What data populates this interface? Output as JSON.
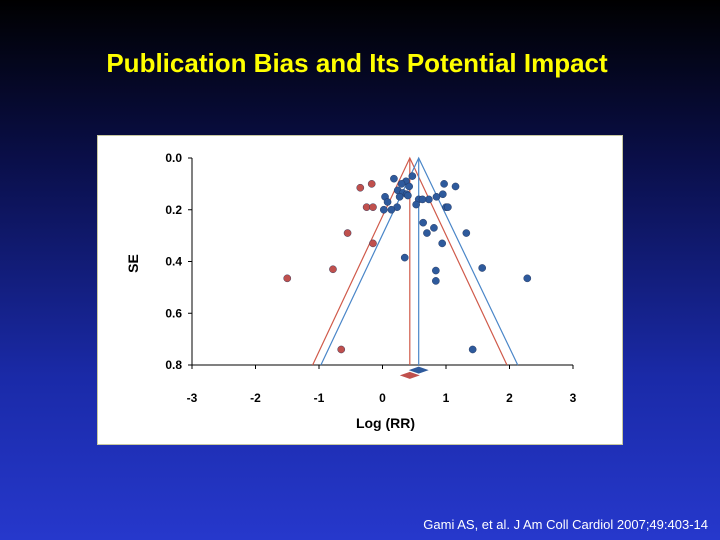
{
  "title": "Publication Bias and Its Potential Impact",
  "citation": "Gami AS, et al. J Am Coll Cardiol 2007;49:403-14",
  "colors": {
    "red": "#c0504d",
    "blue": "#2e5a9c",
    "red_line": "#d05a4a",
    "blue_line": "#4a86c8"
  },
  "chart_data": {
    "type": "scatter",
    "title": "",
    "xlabel": "Log (RR)",
    "ylabel": "SE",
    "xlim": [
      -3,
      3
    ],
    "ylim": [
      0.8,
      0.0
    ],
    "x_ticks": [
      -3,
      -2,
      -1,
      0,
      1,
      2,
      3
    ],
    "y_ticks": [
      0.0,
      0.2,
      0.4,
      0.6,
      0.8
    ],
    "x_tick_labels": [
      "-3",
      "-2",
      "-1",
      "0",
      "1",
      "2",
      "3"
    ],
    "y_tick_labels": [
      "0.0",
      "0.2",
      "0.4",
      "0.6",
      "0.8"
    ],
    "grid": false,
    "funnels": [
      {
        "color": "red",
        "center": 0.43,
        "base_left": -1.1,
        "base_right": 1.96,
        "base_se": 0.8
      },
      {
        "color": "blue",
        "center": 0.57,
        "base_left": -0.97,
        "base_right": 2.13,
        "base_se": 0.8
      }
    ],
    "pooled_estimates": [
      {
        "color": "blue",
        "x": 0.57,
        "se": 0.82
      },
      {
        "color": "red",
        "x": 0.43,
        "se": 0.84
      }
    ],
    "series": [
      {
        "color": "red",
        "points": [
          {
            "x": -0.35,
            "se": 0.115
          },
          {
            "x": -0.17,
            "se": 0.1
          },
          {
            "x": -0.25,
            "se": 0.19
          },
          {
            "x": -0.15,
            "se": 0.19
          },
          {
            "x": -0.55,
            "se": 0.29
          },
          {
            "x": -0.15,
            "se": 0.33
          },
          {
            "x": -0.78,
            "se": 0.43
          },
          {
            "x": -1.5,
            "se": 0.465
          },
          {
            "x": -0.65,
            "se": 0.74
          }
        ]
      },
      {
        "color": "blue",
        "points": [
          {
            "x": 0.47,
            "se": 0.07
          },
          {
            "x": 0.37,
            "se": 0.09
          },
          {
            "x": 0.18,
            "se": 0.08
          },
          {
            "x": 0.3,
            "se": 0.1
          },
          {
            "x": 0.42,
            "se": 0.11
          },
          {
            "x": 0.24,
            "se": 0.125
          },
          {
            "x": 0.32,
            "se": 0.135
          },
          {
            "x": 0.38,
            "se": 0.14
          },
          {
            "x": 0.4,
            "se": 0.145
          },
          {
            "x": 0.04,
            "se": 0.15
          },
          {
            "x": 0.08,
            "se": 0.17
          },
          {
            "x": 0.27,
            "se": 0.15
          },
          {
            "x": 0.97,
            "se": 0.1
          },
          {
            "x": 1.15,
            "se": 0.11
          },
          {
            "x": 0.95,
            "se": 0.14
          },
          {
            "x": 0.85,
            "se": 0.15
          },
          {
            "x": 0.73,
            "se": 0.16
          },
          {
            "x": 0.57,
            "se": 0.16
          },
          {
            "x": 0.63,
            "se": 0.16
          },
          {
            "x": 0.53,
            "se": 0.18
          },
          {
            "x": 0.23,
            "se": 0.19
          },
          {
            "x": 0.02,
            "se": 0.2
          },
          {
            "x": 0.14,
            "se": 0.2
          },
          {
            "x": 1.0,
            "se": 0.19
          },
          {
            "x": 1.03,
            "se": 0.19
          },
          {
            "x": 0.64,
            "se": 0.25
          },
          {
            "x": 0.81,
            "se": 0.27
          },
          {
            "x": 0.7,
            "se": 0.29
          },
          {
            "x": 1.32,
            "se": 0.29
          },
          {
            "x": 0.94,
            "se": 0.33
          },
          {
            "x": 0.35,
            "se": 0.385
          },
          {
            "x": 1.57,
            "se": 0.425
          },
          {
            "x": 0.84,
            "se": 0.435
          },
          {
            "x": 2.28,
            "se": 0.465
          },
          {
            "x": 0.84,
            "se": 0.475
          },
          {
            "x": 1.42,
            "se": 0.74
          }
        ]
      }
    ]
  }
}
